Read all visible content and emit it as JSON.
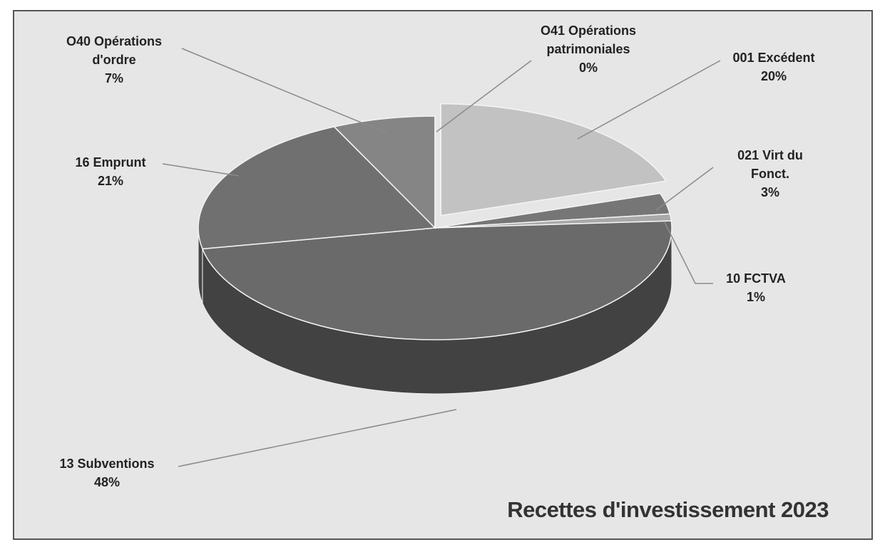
{
  "chart_data": {
    "type": "pie3d",
    "title": "Recettes d'investissement 2023",
    "categories": [
      "001 Excédent",
      "021 Virt du Fonct.",
      "10 FCTVA",
      "13 Subventions",
      "16 Emprunt",
      "O40 Opérations d'ordre",
      "O41 Opérations patrimoniales"
    ],
    "values": [
      20,
      3,
      1,
      48,
      21,
      7,
      0
    ],
    "value_labels": [
      "20%",
      "3%",
      "1%",
      "48%",
      "21%",
      "7%",
      "0%"
    ],
    "colors": [
      "#c2c2c2",
      "#767676",
      "#a9a9a9",
      "#6a6a6a",
      "#707070",
      "#858585",
      "#d0d0d0"
    ]
  }
}
